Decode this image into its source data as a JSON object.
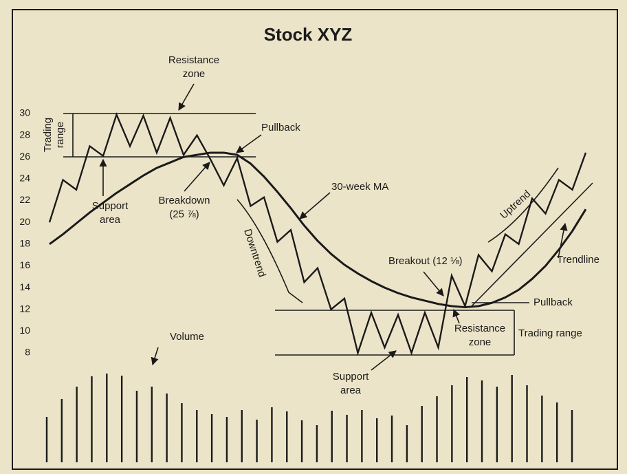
{
  "chart_data": {
    "type": "line",
    "title": "Stock XYZ",
    "ylim": [
      8,
      30
    ],
    "yticks": [
      8,
      10,
      12,
      14,
      16,
      18,
      20,
      22,
      24,
      26,
      28,
      30
    ],
    "series": [
      {
        "name": "Price",
        "color": "#1a1a1a",
        "values": [
          20,
          23.9,
          23,
          27,
          26.1,
          29.9,
          27,
          29.8,
          26.4,
          29.6,
          26.2,
          28,
          25.8,
          23.4,
          25.9,
          21.5,
          22.3,
          18.2,
          19.3,
          14.5,
          15.8,
          12,
          13,
          8,
          11.7,
          8.5,
          11.5,
          8,
          11.7,
          8.5,
          15.1,
          12.3,
          17,
          15.5,
          18.9,
          18,
          22.2,
          20.8,
          23.9,
          23,
          26.4
        ]
      },
      {
        "name": "30-week MA",
        "color": "#1a1a1a",
        "values": [
          18,
          18.9,
          19.9,
          20.9,
          21.8,
          22.7,
          23.5,
          24.3,
          25,
          25.5,
          26,
          26.2,
          26.4,
          26.4,
          26.2,
          25.4,
          24.2,
          22.8,
          21.3,
          19.7,
          18.3,
          17.1,
          16.1,
          15.3,
          14.6,
          14,
          13.5,
          13.1,
          12.8,
          12.5,
          12.3,
          12.2,
          12.3,
          12.6,
          13.1,
          13.8,
          14.8,
          16,
          17.5,
          19.2,
          21.2
        ]
      }
    ],
    "volume": {
      "color": "#1a1a1a",
      "values": [
        66,
        92,
        110,
        125,
        129,
        126,
        104,
        110,
        100,
        86,
        76,
        70,
        66,
        76,
        62,
        80,
        74,
        61,
        54,
        75,
        69,
        76,
        64,
        68,
        54,
        82,
        96,
        112,
        124,
        119,
        110,
        127,
        112,
        97,
        87,
        76
      ]
    },
    "annotations": {
      "resistance_zone_top": [
        "Resistance",
        "zone"
      ],
      "trading_range_left": [
        "Trading",
        "range"
      ],
      "support_area_left": [
        "Support",
        "area"
      ],
      "breakdown": [
        "Breakdown",
        "(25 ⅞)"
      ],
      "pullback_top": "Pullback",
      "ma_label": "30-week MA",
      "downtrend": "Downtrend",
      "breakout": "Breakout (12 ⅛)",
      "uptrend": "Uptrend",
      "trendline": "Trendline",
      "pullback_right": "Pullback",
      "resistance_zone_bottom": [
        "Resistance",
        "zone"
      ],
      "trading_range_right": "Trading range",
      "volume": "Volume",
      "support_area_bottom": [
        "Support",
        "area"
      ]
    }
  }
}
